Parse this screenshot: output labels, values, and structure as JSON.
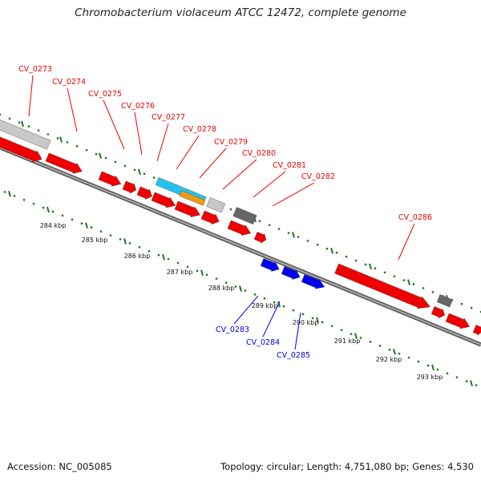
{
  "title": "Chromobacterium violaceum ATCC 12472, complete genome",
  "footer": {
    "accession": "Accession: NC_005085",
    "stats": "Topology: circular; Length: 4,751,080 bp; Genes: 4,530"
  },
  "colors": {
    "forward_gene": "#ee0000",
    "reverse_gene": "#0000ee",
    "backbone": "#777777",
    "tick": "#1b7a1b",
    "pseudo_light": "#c8c8c8",
    "pseudo_dark": "#666666",
    "rna_cyan": "#22c4ee",
    "rna_orange": "#f09a10"
  },
  "ticks": [
    "284 kbp",
    "285 kbp",
    "286 kbp",
    "287 kbp",
    "288 kbp",
    "289 kbp",
    "290 kbp",
    "291 kbp",
    "292 kbp",
    "293 kbp"
  ],
  "gene_labels_forward": [
    "CV_0273",
    "CV_0274",
    "CV_0275",
    "CV_0276",
    "CV_0277",
    "CV_0278",
    "CV_0279",
    "CV_0280",
    "CV_0281",
    "CV_0282",
    "CV_0286"
  ],
  "gene_labels_reverse": [
    "CV_0283",
    "CV_0284",
    "CV_0285"
  ]
}
